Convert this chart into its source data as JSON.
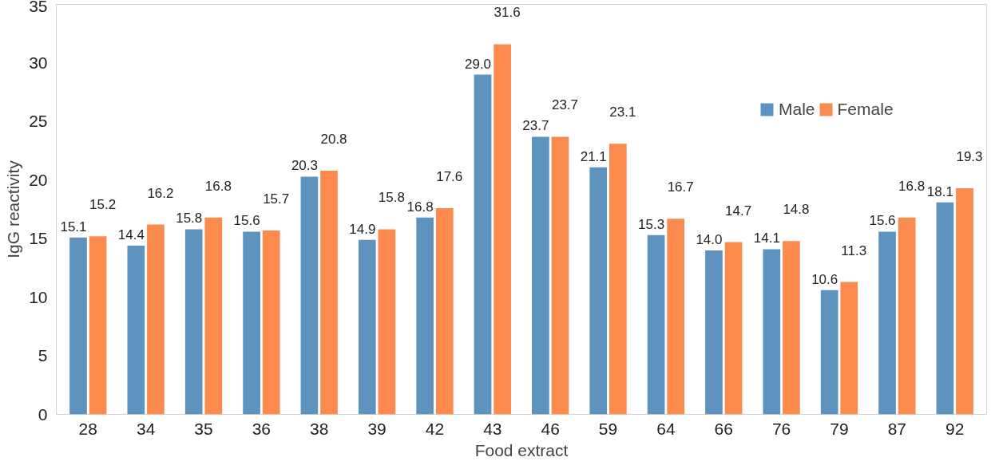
{
  "chart_data": {
    "type": "bar",
    "xlabel": "Food extract",
    "ylabel": "IgG reactivity",
    "categories": [
      "28",
      "34",
      "35",
      "36",
      "38",
      "39",
      "42",
      "43",
      "46",
      "59",
      "64",
      "66",
      "76",
      "79",
      "87",
      "92"
    ],
    "series": [
      {
        "name": "Male",
        "color": "#5f93bf",
        "values": [
          15.1,
          14.4,
          15.8,
          15.6,
          20.3,
          14.9,
          16.8,
          29,
          23.7,
          21.1,
          15.3,
          14,
          14.1,
          10.6,
          15.6,
          18.1
        ],
        "value_labels": [
          "15.1",
          "14.4",
          "15.8",
          "15.6",
          "20.3",
          "14.9",
          "16.8",
          "29.0",
          "23.7",
          "21.1",
          "15.3",
          "14.0",
          "14.1",
          "10.6",
          "15.6",
          "18.1"
        ]
      },
      {
        "name": "Female",
        "color": "#fb8a4c",
        "values": [
          15.2,
          16.2,
          16.8,
          15.7,
          20.8,
          15.8,
          17.6,
          31.6,
          23.7,
          23.1,
          16.7,
          14.7,
          14.8,
          11.3,
          16.8,
          19.3
        ],
        "value_labels": [
          "15.2",
          "16.2",
          "16.8",
          "15.7",
          "20.8",
          "15.8",
          "17.6",
          "31.6",
          "23.7",
          "23.1",
          "16.7",
          "14.7",
          "14.8",
          "11.3",
          "16.8",
          "19.3"
        ]
      }
    ],
    "ylim": [
      0,
      35
    ],
    "yticks": [
      0,
      5,
      10,
      15,
      20,
      25,
      30,
      35
    ],
    "grid": false,
    "legend": "top right"
  }
}
